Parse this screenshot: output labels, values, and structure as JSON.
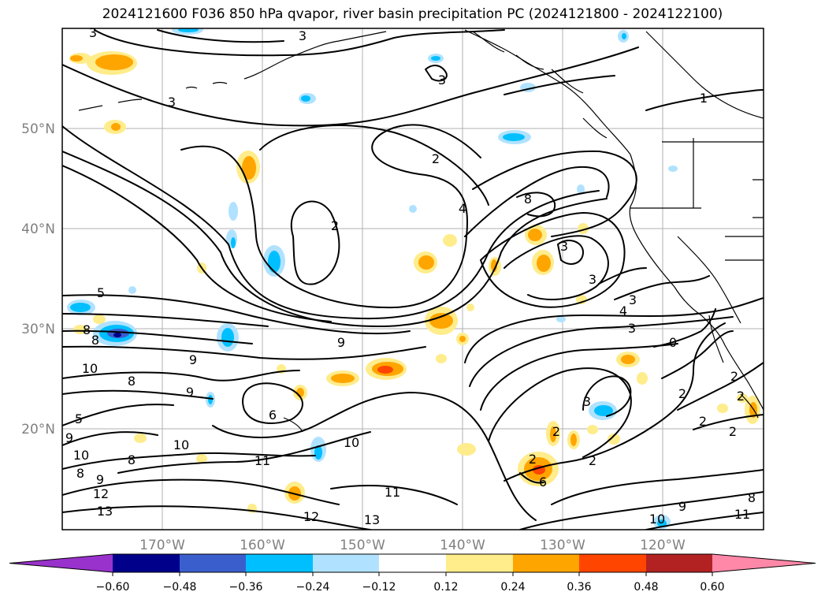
{
  "title": "2024121600 F036 850 hPa qvapor, river basin precipitation PC (2024121800 - 2024122100)",
  "map": {
    "lat_labels": [
      "50°N",
      "40°N",
      "30°N",
      "20°N"
    ],
    "lon_labels": [
      "170°W",
      "160°W",
      "150°W",
      "140°W",
      "130°W",
      "120°W"
    ],
    "contour_labels": [
      "3",
      "3",
      "3",
      "3",
      "1",
      "2",
      "2",
      "4",
      "8",
      "3",
      "3",
      "3",
      "4",
      "3",
      "0",
      "5",
      "8",
      "8",
      "10",
      "9",
      "8",
      "9",
      "9",
      "6",
      "5",
      "9",
      "10",
      "8",
      "10",
      "11",
      "10",
      "9",
      "8",
      "12",
      "13",
      "11",
      "12",
      "13",
      "2",
      "2",
      "2",
      "3",
      "2",
      "2",
      "2",
      "2",
      "6",
      "2",
      "9",
      "10",
      "11",
      "8"
    ]
  },
  "colorbar": {
    "tick_labels": [
      "−0.60",
      "−0.48",
      "−0.36",
      "−0.24",
      "−0.12",
      "0.12",
      "0.24",
      "0.36",
      "0.48",
      "0.60"
    ],
    "colors": [
      "#9932cc",
      "#00008b",
      "#3a5fcd",
      "#00bfff",
      "#b0e2ff",
      "#ffffff",
      "#ffec8b",
      "#ffa500",
      "#ff4500",
      "#b22222",
      "#ff88a8"
    ]
  }
}
